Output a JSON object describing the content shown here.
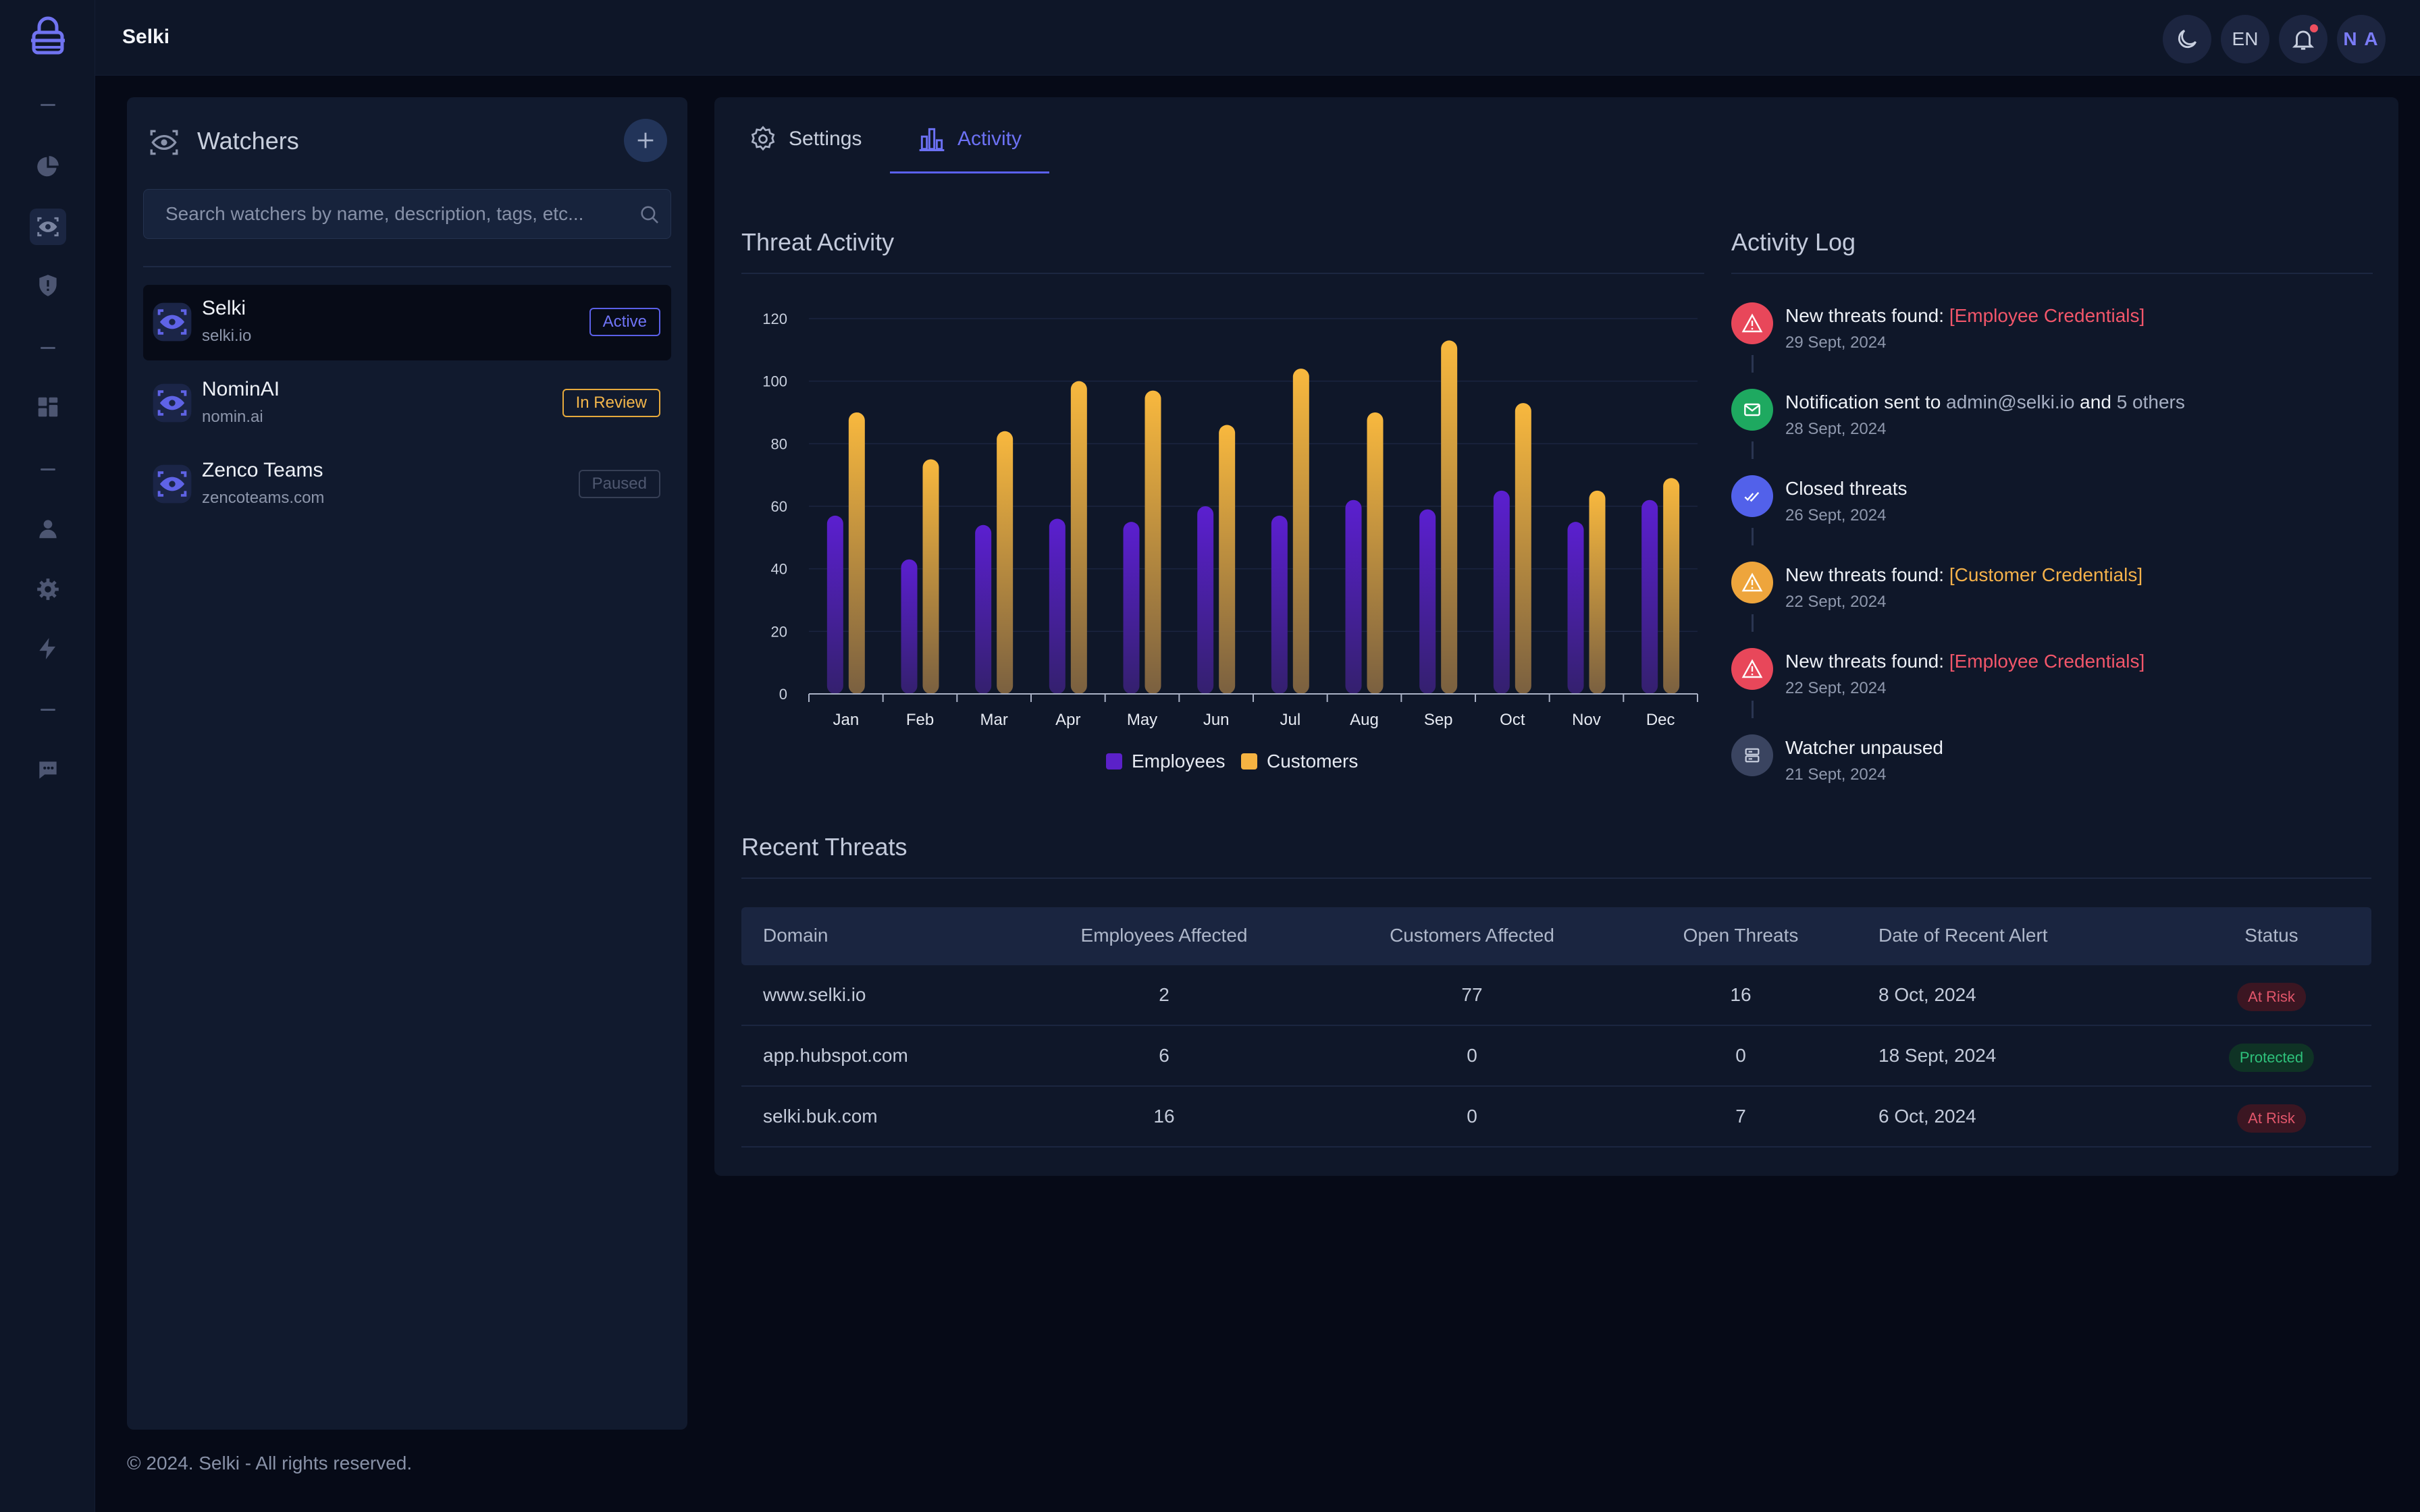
{
  "app": {
    "title": "Selki"
  },
  "topbar": {
    "lang": "EN",
    "avatar_initials": "N A"
  },
  "watchers": {
    "title": "Watchers",
    "search_placeholder": "Search watchers by name, description, tags, etc...",
    "items": [
      {
        "name": "Selki",
        "domain": "selki.io",
        "status": "Active"
      },
      {
        "name": "NominAI",
        "domain": "nomin.ai",
        "status": "In Review"
      },
      {
        "name": "Zenco Teams",
        "domain": "zencoteams.com",
        "status": "Paused"
      }
    ]
  },
  "tabs": {
    "settings": "Settings",
    "activity": "Activity"
  },
  "threat_activity": {
    "title": "Threat Activity"
  },
  "chart_data": {
    "type": "bar",
    "title": "Threat Activity",
    "categories": [
      "Jan",
      "Feb",
      "Mar",
      "Apr",
      "May",
      "Jun",
      "Jul",
      "Aug",
      "Sep",
      "Oct",
      "Nov",
      "Dec"
    ],
    "series": [
      {
        "name": "Employees",
        "color": "#5b21c9",
        "values": [
          57,
          43,
          54,
          56,
          55,
          60,
          57,
          62,
          59,
          65,
          55,
          62
        ]
      },
      {
        "name": "Customers",
        "color": "#f5b342",
        "values": [
          90,
          75,
          84,
          100,
          97,
          86,
          104,
          90,
          113,
          93,
          65,
          69
        ]
      }
    ],
    "yticks": [
      0,
      20,
      40,
      60,
      80,
      100,
      120
    ],
    "ylim": [
      0,
      120
    ],
    "grid": true,
    "legend": "bottom-center"
  },
  "activity_log": {
    "title": "Activity Log",
    "items": [
      {
        "type": "danger",
        "text": "New threats found: ",
        "highlight": "[Employee Credentials]",
        "date": "29 Sept, 2024"
      },
      {
        "type": "success",
        "text": "Notification sent to ",
        "email": "admin@selki.io",
        "and": " and ",
        "others": "5 others",
        "date": "28 Sept, 2024"
      },
      {
        "type": "info",
        "text": "Closed threats",
        "date": "26 Sept, 2024"
      },
      {
        "type": "warning",
        "text": "New threats found: ",
        "highlight": "[Customer Credentials]",
        "date": "22 Sept, 2024"
      },
      {
        "type": "danger",
        "text": "New threats found: ",
        "highlight": "[Employee Credentials]",
        "date": "22 Sept, 2024"
      },
      {
        "type": "neutral",
        "text": "Watcher unpaused",
        "date": "21 Sept, 2024"
      }
    ]
  },
  "recent_threats": {
    "title": "Recent Threats",
    "columns": [
      "Domain",
      "Employees Affected",
      "Customers Affected",
      "Open Threats",
      "Date of Recent Alert",
      "Status"
    ],
    "rows": [
      {
        "domain": "www.selki.io",
        "employees": "2",
        "customers": "77",
        "open": "16",
        "date": "8 Oct, 2024",
        "status": "At Risk"
      },
      {
        "domain": "app.hubspot.com",
        "employees": "6",
        "customers": "0",
        "open": "0",
        "date": "18 Sept, 2024",
        "status": "Protected"
      },
      {
        "domain": "selki.buk.com",
        "employees": "16",
        "customers": "0",
        "open": "7",
        "date": "6 Oct, 2024",
        "status": "At Risk"
      }
    ]
  },
  "footer": {
    "text": "© 2024. Selki - All rights reserved."
  }
}
